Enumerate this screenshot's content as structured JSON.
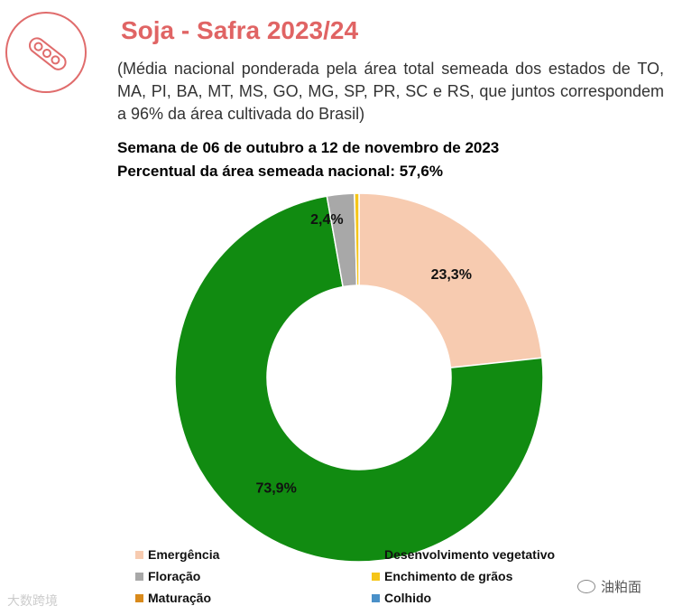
{
  "header": {
    "title": "Soja - Safra 2023/24",
    "subtitle": "(Média nacional ponderada pela área total semeada dos estados de TO, MA, PI, BA, MT, MS, GO, MG, SP, PR, SC e RS, que juntos correspondem a 96% da área cultivada do Brasil)",
    "week": "Semana de 06 de outubro a 12 de novembro de 2023",
    "sown_area": "Percentual da área semeada nacional: 57,6%"
  },
  "logo": {
    "icon": "soybean-pod-icon",
    "color": "#e06c6c"
  },
  "chart_data": {
    "type": "pie",
    "variant": "donut",
    "categories": [
      "Emergência",
      "Desenvolvimento vegetativo",
      "Floração",
      "Enchimento de grãos",
      "Maturação",
      "Colhido"
    ],
    "values": [
      23.3,
      73.9,
      2.4,
      0.4,
      0.0,
      0.0
    ],
    "labels": [
      "23,3%",
      "73,9%",
      "2,4%",
      "",
      "",
      ""
    ],
    "colors": [
      "#f7cbb0",
      "#118b11",
      "#a8a8a8",
      "#f5c518",
      "#d98a1b",
      "#4a90c8"
    ],
    "legend_position": "bottom"
  },
  "watermarks": {
    "left": "大数跨境",
    "right": "油粕面"
  }
}
